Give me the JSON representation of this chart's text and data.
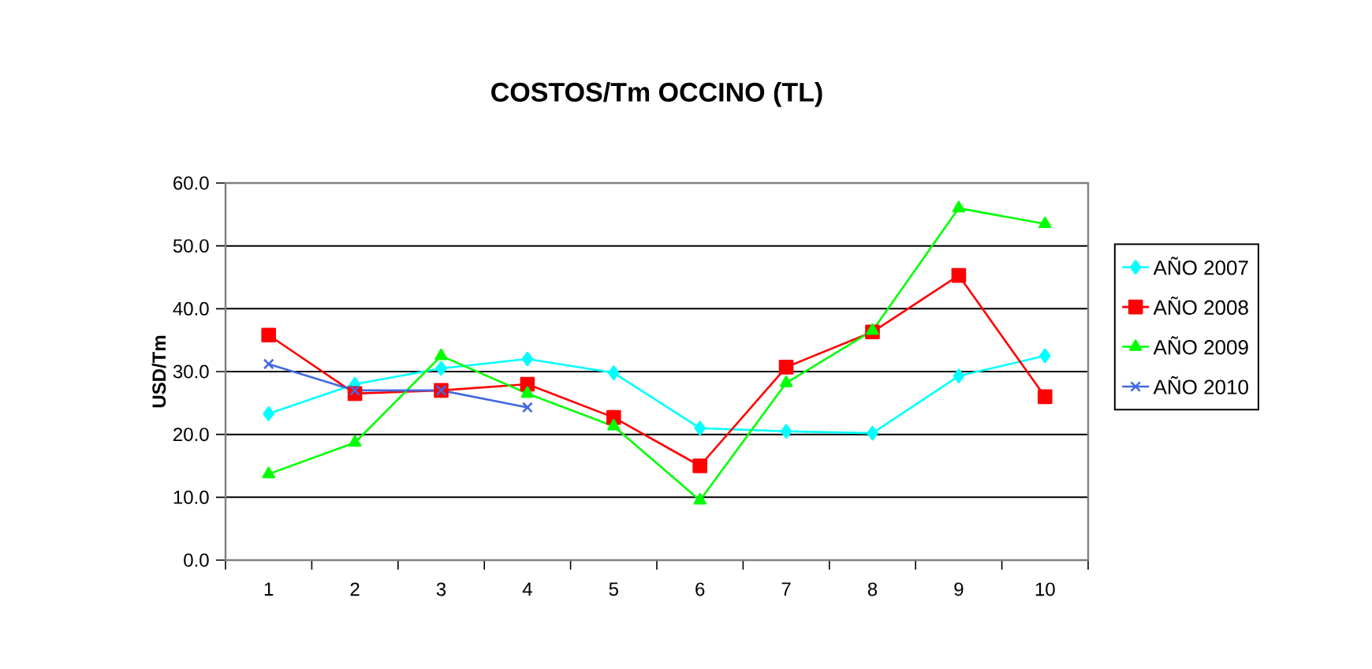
{
  "chart_data": {
    "type": "line",
    "title": "COSTOS/Tm OCCINO (TL)",
    "ylabel": "USD/Tm",
    "categories": [
      "1",
      "2",
      "3",
      "4",
      "5",
      "6",
      "7",
      "8",
      "9",
      "10"
    ],
    "ylim": [
      0,
      60
    ],
    "yticks": [
      {
        "value": 0,
        "label": "0.0"
      },
      {
        "value": 10,
        "label": "10.0"
      },
      {
        "value": 20,
        "label": "20.0"
      },
      {
        "value": 30,
        "label": "30.0"
      },
      {
        "value": 40,
        "label": "40.0"
      },
      {
        "value": 50,
        "label": "50.0"
      },
      {
        "value": 60,
        "label": "60.0"
      }
    ],
    "grid": "y",
    "legend": "right",
    "line_style": "solid",
    "series": [
      {
        "name": "AÑO 2007",
        "color": "#00ffff",
        "marker": "diamond",
        "values": [
          23.3,
          28,
          30.5,
          32,
          29.8,
          21,
          20.5,
          20.2,
          29.3,
          32.5
        ]
      },
      {
        "name": "AÑO 2008",
        "color": "#ff0000",
        "marker": "square",
        "values": [
          35.8,
          26.5,
          27,
          28,
          22.7,
          15,
          30.7,
          36.3,
          45.3,
          26
        ]
      },
      {
        "name": "AÑO 2009",
        "color": "#00ff00",
        "marker": "triangle",
        "values": [
          13.7,
          18.7,
          32.5,
          26.5,
          21.3,
          9.5,
          28.2,
          36.5,
          56,
          53.5
        ]
      },
      {
        "name": "AÑO 2010",
        "color": "#4169e1",
        "marker": "cross",
        "values": [
          31.2,
          27,
          27,
          24.3,
          null,
          null,
          null,
          null,
          null,
          null
        ]
      }
    ]
  }
}
